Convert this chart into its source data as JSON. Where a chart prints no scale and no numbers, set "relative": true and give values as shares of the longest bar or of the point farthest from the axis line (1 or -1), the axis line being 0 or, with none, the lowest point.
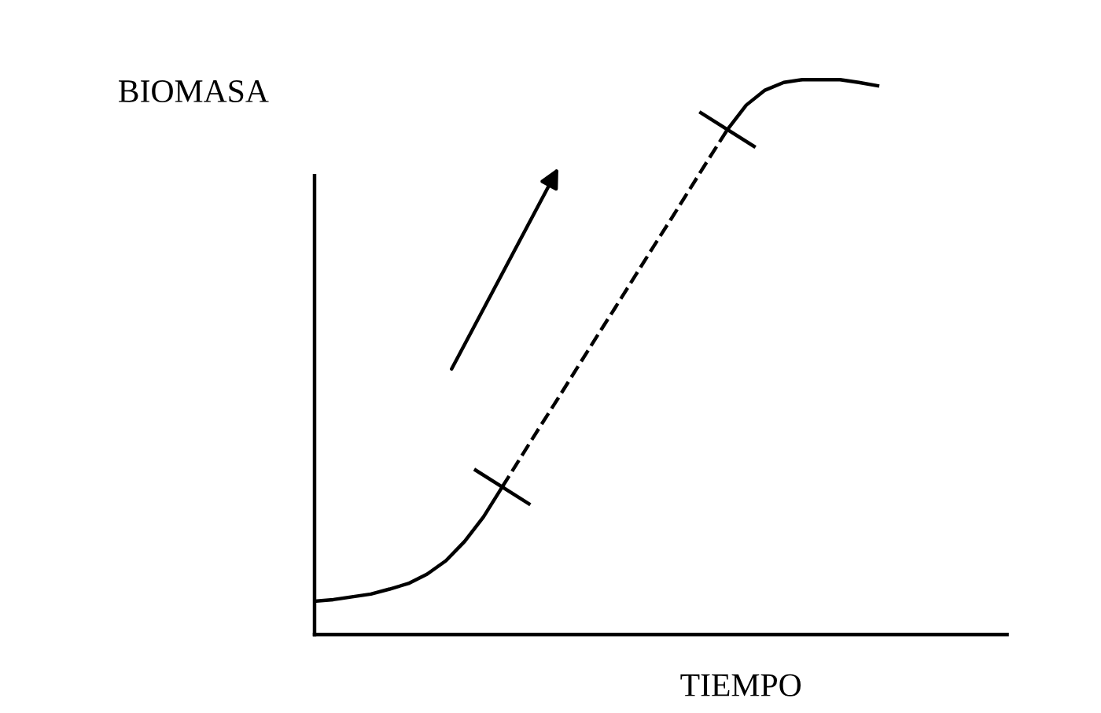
{
  "chart_data": {
    "type": "line",
    "relative": true,
    "xlabel": "TIEMPO",
    "ylabel": "BIOMASA",
    "legend": false,
    "marker": "none",
    "categories": [
      null,
      null,
      null,
      null,
      null,
      null,
      null,
      null,
      null,
      null,
      null,
      null,
      null,
      null,
      null,
      null,
      null,
      null,
      null,
      null,
      null,
      null,
      null,
      null,
      null,
      null,
      null,
      null,
      null,
      null,
      null
    ],
    "series": [
      {
        "color": "#000000",
        "line_style": "solid",
        "values": [
          0.06,
          0.063,
          0.068,
          0.073,
          0.082,
          0.092,
          0.109,
          0.133,
          0.168,
          0.212,
          0.266,
          null,
          null,
          null,
          null,
          null,
          null,
          null,
          null,
          null,
          null,
          null,
          null,
          null,
          null,
          null,
          null,
          null,
          null,
          null,
          null
        ]
      },
      {
        "color": "#000000",
        "line_style": "dashed",
        "values": [
          null,
          null,
          null,
          null,
          null,
          null,
          null,
          null,
          null,
          null,
          0.266,
          0.32,
          0.374,
          0.427,
          0.481,
          0.535,
          0.588,
          0.642,
          0.696,
          0.749,
          0.803,
          0.857,
          0.91,
          null,
          null,
          null,
          null,
          null,
          null,
          null,
          null
        ]
      },
      {
        "color": "#000000",
        "line_style": "solid",
        "values": [
          null,
          null,
          null,
          null,
          null,
          null,
          null,
          null,
          null,
          null,
          null,
          null,
          null,
          null,
          null,
          null,
          null,
          null,
          null,
          null,
          null,
          null,
          0.91,
          0.954,
          0.981,
          0.995,
          1,
          1,
          1,
          0.995,
          0.989
        ]
      }
    ]
  }
}
